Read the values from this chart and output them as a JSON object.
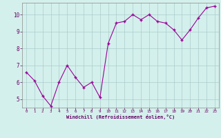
{
  "x": [
    0,
    1,
    2,
    3,
    4,
    5,
    6,
    7,
    8,
    9,
    10,
    11,
    12,
    13,
    14,
    15,
    16,
    17,
    18,
    19,
    20,
    21,
    22,
    23
  ],
  "y": [
    6.6,
    6.1,
    5.2,
    4.6,
    6.0,
    7.0,
    6.3,
    5.7,
    6.0,
    5.1,
    8.3,
    9.5,
    9.6,
    10.0,
    9.7,
    10.0,
    9.6,
    9.5,
    9.1,
    8.5,
    9.1,
    9.8,
    10.4,
    10.5
  ],
  "line_color": "#990099",
  "marker_color": "#990099",
  "bg_color": "#d4f0ec",
  "grid_color": "#aacccc",
  "axis_label_color": "#660066",
  "tick_color": "#660066",
  "xlabel": "Windchill (Refroidissement éolien,°C)",
  "ylim": [
    4.5,
    10.7
  ],
  "xlim": [
    -0.5,
    23.5
  ],
  "yticks": [
    5,
    6,
    7,
    8,
    9,
    10
  ],
  "xticks": [
    0,
    1,
    2,
    3,
    4,
    5,
    6,
    7,
    8,
    9,
    10,
    11,
    12,
    13,
    14,
    15,
    16,
    17,
    18,
    19,
    20,
    21,
    22,
    23
  ],
  "figsize": [
    3.2,
    2.0
  ],
  "dpi": 100
}
